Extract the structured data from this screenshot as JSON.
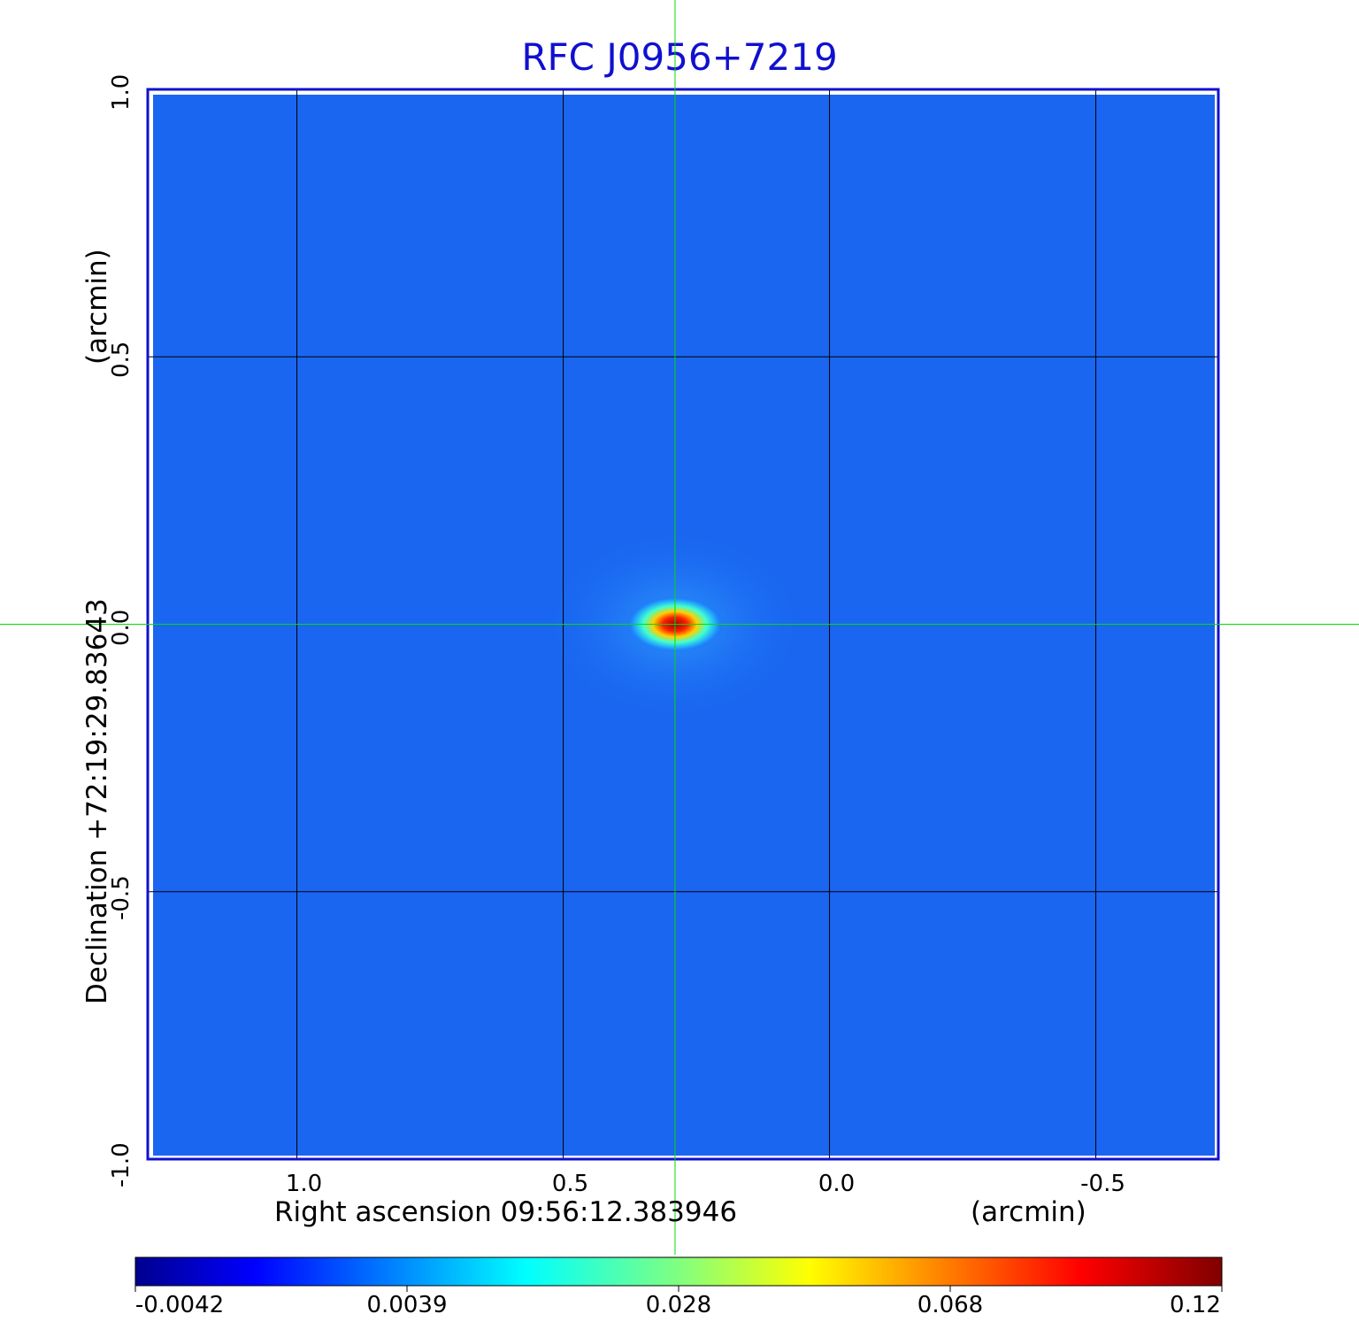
{
  "chart_data": {
    "type": "heatmap",
    "title": "RFC J0956+7219",
    "xlabel": "Right ascension  09:56:12.383946",
    "xunit": "(arcmin)",
    "ylabel": "Declination  +72:19:29.83643",
    "yunit": "(arcmin)",
    "xlim": [
      1.28,
      -0.73
    ],
    "ylim": [
      -1.0,
      1.0
    ],
    "x_ticks": [
      1.0,
      0.5,
      0.0,
      -0.5
    ],
    "x_tick_labels": [
      "1.0",
      "0.5",
      "0.0",
      "-0.5"
    ],
    "y_ticks": [
      -1.0,
      -0.5,
      0.0,
      0.5,
      1.0
    ],
    "y_tick_labels": [
      "-1.0",
      "-0.5",
      "0.0",
      "0.5",
      "1.0"
    ],
    "grid": true,
    "crosshair": {
      "x": 0.29,
      "y": 0.0
    },
    "source_peak": {
      "x": 0.29,
      "y": 0.0,
      "value": 0.12
    },
    "colorbar": {
      "colormap": "jet",
      "ticks": [
        "-0.0042",
        "0.0039",
        "0.028",
        "0.068",
        "0.12"
      ],
      "min": -0.0042,
      "max": 0.12
    },
    "colors": {
      "background_field": "#1a66f0",
      "title": "#1010d0",
      "frame": "#1010d0",
      "crosshair": "#00e000",
      "grid": "#000000"
    }
  }
}
